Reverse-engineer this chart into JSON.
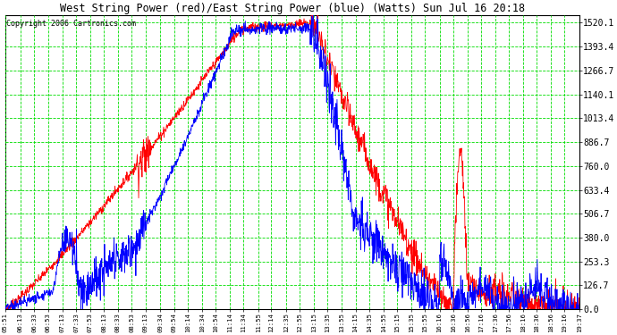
{
  "title": "West String Power (red)/East String Power (blue) (Watts) Sun Jul 16 20:18",
  "copyright": "Copyright 2006 Cartronics.com",
  "y_ticks": [
    0.0,
    126.7,
    253.3,
    380.0,
    506.7,
    633.4,
    760.0,
    886.7,
    1013.4,
    1140.1,
    1266.7,
    1393.4,
    1520.1
  ],
  "ylim": [
    0,
    1560
  ],
  "bg_color": "#ffffff",
  "plot_bg_color": "#ffffff",
  "grid_color": "#00dd00",
  "west_color": "red",
  "east_color": "blue",
  "x_labels": [
    "05:51",
    "06:13",
    "06:33",
    "06:53",
    "07:13",
    "07:33",
    "07:53",
    "08:13",
    "08:33",
    "08:53",
    "09:13",
    "09:34",
    "09:54",
    "10:14",
    "10:34",
    "10:54",
    "11:14",
    "11:34",
    "11:55",
    "12:14",
    "12:35",
    "12:55",
    "13:15",
    "13:35",
    "13:55",
    "14:15",
    "14:35",
    "14:55",
    "15:15",
    "15:35",
    "15:55",
    "16:16",
    "16:36",
    "16:56",
    "17:16",
    "17:36",
    "17:56",
    "18:16",
    "18:36",
    "18:56",
    "19:16",
    "19:37"
  ]
}
